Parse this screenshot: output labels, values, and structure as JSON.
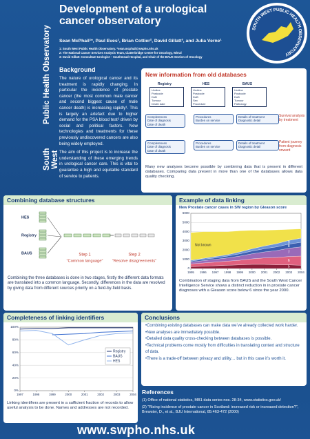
{
  "header": {
    "side_title_1": "Public Health Observatory",
    "side_title_2": "South West",
    "title": "Development of a urological cancer observatory",
    "authors": "Sean McPhail¹*, Paul Eves¹, Brian Cottier², David Gillatt³, and Julia Verne¹",
    "affiliations": [
      "1: South West Public Health Observatory. *sean.mcphail@swpho.nhs.uk",
      "2: The National Cancer Services Analysis Team, Clatterbridge Centre for Oncology, Wirral",
      "3: David Gillatt: Consultant Urologist – Southmead Hospital, and Chair of the BAUS Section of Oncology"
    ],
    "logo_text": "SOUTH WEST PUBLIC HEALTH OBSERVATORY"
  },
  "background": {
    "heading": "Background",
    "paragraphs": [
      "The nature of urological cancer and its treatment is rapidly changing. In particular the incidence of prostate cancer (the most common male cancer and second biggest cause of male cancer death) is increasing rapidly¹. This is largely an artefact due to higher demand for the PSA blood test² driven by social and political factors. New technologies and treatments for these previously undiscovered cancers are also being widely employed.",
      "The aim of this project is to increase the understanding of these emerging trends in urological cancer care. This is vital to guarantee a high and equitable standard of service to patients."
    ]
  },
  "new_information": {
    "heading": "New information from old databases",
    "databases": [
      {
        "name": "Registry",
        "fields": [
          "Uroline",
          "Postcode",
          "DoB",
          "Tumour",
          "Death date"
        ]
      },
      {
        "name": "HES",
        "fields": [
          "Uroline",
          "Postcode",
          "DoB",
          "Sex",
          "Procedure"
        ]
      },
      {
        "name": "BAUS",
        "fields": [
          "Uroline",
          "Postcode",
          "DoB",
          "Tumour",
          "Pathology"
        ]
      }
    ],
    "rows": [
      {
        "registry": [
          "Completeness",
          "Date of diagnosis",
          "Date of death"
        ],
        "hes": [
          "Procedures",
          "Burden on service"
        ],
        "baus": [
          "Details of treatment",
          "Diagnostic detail"
        ],
        "outcome": "Survival analysis by treatment"
      },
      {
        "registry": [
          "Completeness",
          "Date of diagnosis",
          "Date of death"
        ],
        "hes": [
          "Procedures",
          "Burden on service"
        ],
        "baus": [
          "Details of treatment",
          "Diagnostic detail"
        ],
        "outcome": "Patient journey from diagnosis onward"
      }
    ],
    "caption": "Many new analyses become possible by combining data that is present in different databases. Comparing data present in more than one of the databases allows data quality checking."
  },
  "combining": {
    "heading": "Combining database structures",
    "sources": [
      "HES",
      "Registry",
      "BAUS"
    ],
    "steps": [
      {
        "label": "Step 1",
        "description": "“Common language”"
      },
      {
        "label": "Step 2",
        "description": "“Resolve disagreements”"
      }
    ],
    "caption": "Combining the three databases is done in two stages, firstly the different data formats are translated into a common language. Secondly, differences in the data are resolved by giving data from different sources priority on a field-by-field basis."
  },
  "example": {
    "heading": "Example of data linking",
    "chart_data": {
      "type": "area",
      "title": "New Prostate cancer cases in SW region by Gleason score",
      "x": [
        1995,
        1996,
        1997,
        1998,
        1999,
        2000,
        2001,
        2002,
        2003,
        2004
      ],
      "xlim": [
        1995,
        2004
      ],
      "xticks": [
        1995,
        1996,
        1997,
        1998,
        1999,
        2000,
        2001,
        2002,
        2003,
        2004
      ],
      "ylim": [
        0,
        6000
      ],
      "yticks": [
        0,
        1000,
        2000,
        3000,
        4000,
        5000,
        6000
      ],
      "stacked": true,
      "series": [
        {
          "name": "5",
          "color": "#8c1f3a",
          "values": [
            200,
            250,
            300,
            350,
            400,
            450,
            450,
            400,
            400,
            350
          ]
        },
        {
          "name": "6",
          "color": "#e0607e",
          "values": [
            300,
            350,
            400,
            450,
            500,
            600,
            700,
            800,
            900,
            1000
          ]
        },
        {
          "name": "7",
          "color": "#9a6ab8",
          "values": [
            200,
            250,
            300,
            350,
            450,
            550,
            650,
            750,
            900,
            1000
          ]
        },
        {
          "name": "8",
          "color": "#3b5fb0",
          "values": [
            100,
            150,
            150,
            200,
            250,
            300,
            350,
            400,
            450,
            500
          ]
        },
        {
          "name": "9",
          "color": "#6d94d8",
          "values": [
            100,
            100,
            150,
            150,
            200,
            250,
            300,
            350,
            400,
            450
          ]
        },
        {
          "name": "Not known",
          "color": "#f1e14a",
          "values": [
            3000,
            2900,
            2700,
            2500,
            2300,
            2000,
            1700,
            1500,
            1200,
            1000
          ]
        }
      ]
    },
    "caption": "Combination of staging data from BAUS and the South West Cancer Intelligence Service shows a distinct reduction in in prostate cancer diagnoses with a Gleason score below 6 since the year 2000."
  },
  "completeness": {
    "heading": "Completeness of linking identifiers",
    "chart_data": {
      "type": "line",
      "x": [
        1997,
        1998,
        1999,
        2000,
        2001,
        2002,
        2003,
        2004
      ],
      "xlim": [
        1997,
        2004
      ],
      "xticks": [
        1997,
        1998,
        1999,
        2000,
        2001,
        2002,
        2003,
        2004
      ],
      "ylim": [
        0,
        100
      ],
      "yticks": [
        {
          "value": 0,
          "label": "0%"
        },
        {
          "value": 20,
          "label": "20%"
        },
        {
          "value": 40,
          "label": "40%"
        },
        {
          "value": 60,
          "label": "60%"
        },
        {
          "value": 80,
          "label": "80%"
        },
        {
          "value": 100,
          "label": "100%"
        }
      ],
      "legend": "right",
      "series": [
        {
          "name": "Registry",
          "color": "#1a2f6e",
          "values": [
            97,
            98,
            98,
            99,
            99,
            99,
            99,
            99
          ]
        },
        {
          "name": "BAUS",
          "color": "#3c6fd0",
          "values": [
            null,
            null,
            88,
            89,
            90,
            92,
            93,
            94
          ]
        },
        {
          "name": "HES",
          "color": "#8fb3ec",
          "values": [
            94,
            95,
            90,
            72,
            80,
            87,
            90,
            91
          ]
        }
      ]
    },
    "caption": "Linking identifiers are present in a sufficient fraction of records to allow useful analysis to be done. Names and addresses are not recorded."
  },
  "conclusions": {
    "heading": "Conclusions",
    "items": [
      "•Combining existing databases can make data we’ve already collected work harder.",
      "•New analyses are immediately possible.",
      "•Detailed data quality cross-checking between databases is possible.",
      "•Technical problems come mostly from difficulties in translating context and structure of data.",
      "•There is a trade-off between privacy and utility… but in this case it’s worth it."
    ]
  },
  "references": {
    "heading": "References",
    "items": [
      "(1) Office of national statistics, MB1 data series nos. 28-34, www.statistics.gov.uk/",
      "(2) “Rising incidence of prostate cancer in Scotland: increased risk or increased detection?”, Brewster, D., et al., BJU International, 85:463-472 (2000)"
    ]
  },
  "footer": {
    "url": "www.swpho.nhs.uk"
  }
}
